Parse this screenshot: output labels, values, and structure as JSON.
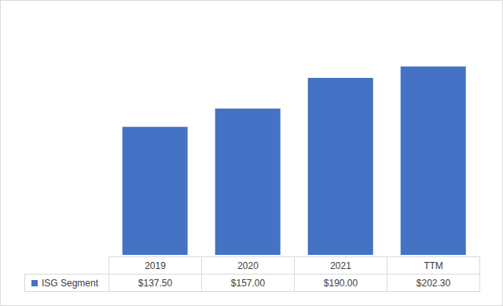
{
  "chart_data": {
    "type": "bar",
    "categories": [
      "2019",
      "2020",
      "2021",
      "TTM"
    ],
    "series": [
      {
        "name": "ISG Segment",
        "color": "#4472c4",
        "values": [
          137.5,
          157,
          190,
          202.3
        ],
        "value_labels": [
          "$137.50",
          "$157.00",
          "$190.00",
          "$202.30"
        ]
      }
    ],
    "ylim": [
      0,
      250
    ],
    "tick_labels": false,
    "grid": false
  }
}
